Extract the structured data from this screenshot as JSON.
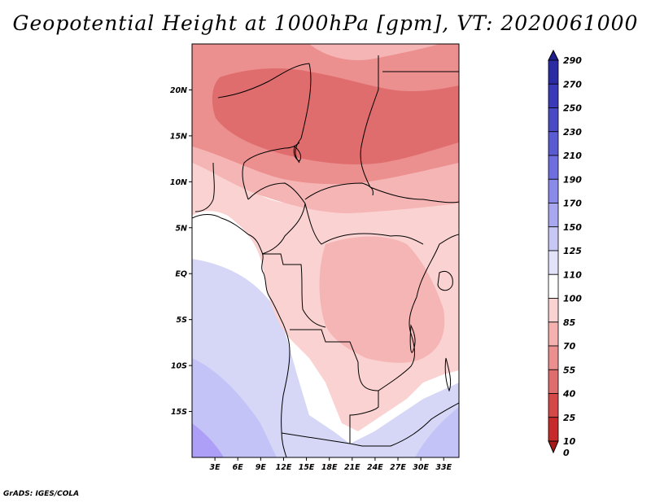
{
  "title": "Geopotential Height at 1000hPa [gpm], VT: 2020061000",
  "footer": "GrADS: IGES/COLA",
  "map": {
    "lat_labels": [
      "20N",
      "15N",
      "10N",
      "5N",
      "EQ",
      "5S",
      "10S",
      "15S"
    ],
    "lat_values": [
      20,
      15,
      10,
      5,
      0,
      -5,
      -10,
      -15
    ],
    "lon_labels": [
      "3E",
      "6E",
      "9E",
      "12E",
      "15E",
      "18E",
      "21E",
      "24E",
      "27E",
      "30E",
      "33E"
    ],
    "lon_values": [
      3,
      6,
      9,
      12,
      15,
      18,
      21,
      24,
      27,
      30,
      33
    ],
    "lon_range": [
      0,
      35
    ],
    "lat_range": [
      -20,
      25
    ]
  },
  "colorbar": {
    "labels": [
      "290",
      "270",
      "250",
      "230",
      "210",
      "190",
      "170",
      "150",
      "125",
      "110",
      "100",
      "85",
      "70",
      "55",
      "40",
      "25",
      "10",
      "0"
    ],
    "colors": [
      "#1e1e8c",
      "#2b2ba3",
      "#3a3ab8",
      "#4a4ac6",
      "#5a5ad2",
      "#6e6ede",
      "#8a8ae8",
      "#a8a8f0",
      "#c8c8f6",
      "#e2e2fb",
      "#ffffff",
      "#fbd2d2",
      "#f5b0b0",
      "#ec8f8f",
      "#e06d6d",
      "#d44848",
      "#c62a2a",
      "#a81818"
    ]
  },
  "contour_colors": {
    "c125": "#d6d7f6",
    "c150": "#c4c3f7",
    "c170": "#ad9ff7",
    "c110": "#ffffff",
    "c100": "#fbd2d2",
    "c85": "#f5b5b5",
    "c70": "#ec8f8f",
    "c55": "#e06d6d"
  }
}
